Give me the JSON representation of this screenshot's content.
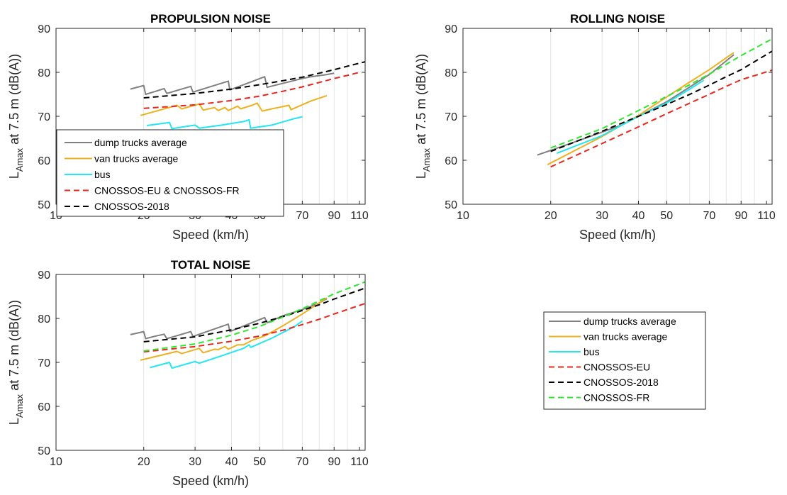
{
  "chart_data": [
    {
      "type": "line",
      "id": "propulsion",
      "title": "PROPULSION NOISE",
      "xlabel": "Speed (km/h)",
      "ylabel_main": "L",
      "ylabel_sub": "Amax",
      "ylabel_rest": " at 7.5 m (dB(A))",
      "xscale": "log",
      "xlim": [
        10,
        115
      ],
      "ylim": [
        50,
        90
      ],
      "xticks": [
        10,
        20,
        30,
        40,
        50,
        70,
        90,
        110
      ],
      "yticks": [
        50,
        60,
        70,
        80,
        90
      ],
      "grid": "x",
      "legend": {
        "placement": "bottom-left",
        "entries": [
          {
            "label": "dump trucks average",
            "color": "#808080",
            "dash": "solid"
          },
          {
            "label": "van trucks average",
            "color": "#EDB120",
            "dash": "solid"
          },
          {
            "label": "bus",
            "color": "#22E6F0",
            "dash": "solid"
          },
          {
            "label": "CNOSSOS-EU & CNOSSOS-FR",
            "color": "#E8251C",
            "dash": "dashed"
          },
          {
            "label": "CNOSSOS-2018",
            "color": "#000000",
            "dash": "dashed"
          }
        ]
      },
      "series": [
        {
          "color": "#808080",
          "dash": "solid",
          "points": [
            [
              18,
              76.2
            ],
            [
              20,
              77
            ],
            [
              20.3,
              75
            ],
            [
              22,
              75.7
            ],
            [
              23.5,
              76.3
            ],
            [
              24,
              75.2
            ],
            [
              29,
              76.8
            ],
            [
              29.5,
              75.5
            ],
            [
              39,
              78
            ],
            [
              39.5,
              76
            ],
            [
              52,
              79
            ],
            [
              53,
              76.6
            ],
            [
              70,
              78.6
            ],
            [
              75,
              79
            ],
            [
              85,
              79.5
            ],
            [
              90,
              79.8
            ]
          ]
        },
        {
          "color": "#EDB120",
          "dash": "solid",
          "points": [
            [
              19.5,
              70.2
            ],
            [
              26,
              72.5
            ],
            [
              27,
              71.7
            ],
            [
              31,
              72.8
            ],
            [
              32,
              71.4
            ],
            [
              35,
              72
            ],
            [
              36,
              71.3
            ],
            [
              38,
              72
            ],
            [
              39,
              71.3
            ],
            [
              42,
              72.3
            ],
            [
              43,
              71.7
            ],
            [
              47,
              72.5
            ],
            [
              49,
              73
            ],
            [
              51,
              71.2
            ],
            [
              56,
              71.8
            ],
            [
              63,
              72.5
            ],
            [
              64,
              71.5
            ],
            [
              75,
              73.5
            ],
            [
              85,
              74.7
            ]
          ]
        },
        {
          "color": "#22E6F0",
          "dash": "solid",
          "points": [
            [
              20.5,
              67.9
            ],
            [
              24.5,
              68.6
            ],
            [
              25,
              67.2
            ],
            [
              30,
              68
            ],
            [
              31,
              67.3
            ],
            [
              37,
              68
            ],
            [
              44,
              68.8
            ],
            [
              46,
              69.2
            ],
            [
              46.5,
              67.3
            ],
            [
              55,
              68
            ],
            [
              66,
              69.5
            ],
            [
              70,
              69.9
            ]
          ]
        },
        {
          "color": "#E8251C",
          "dash": "dashed",
          "points": [
            [
              20,
              71.8
            ],
            [
              30,
              72.6
            ],
            [
              40,
              73.6
            ],
            [
              50,
              74.6
            ],
            [
              60,
              75.7
            ],
            [
              70,
              76.7
            ],
            [
              80,
              77.7
            ],
            [
              90,
              78.6
            ],
            [
              100,
              79.3
            ],
            [
              110,
              80
            ]
          ]
        },
        {
          "color": "#000000",
          "dash": "dashed",
          "points": [
            [
              20,
              74.2
            ],
            [
              30,
              75.2
            ],
            [
              40,
              76.2
            ],
            [
              50,
              77.2
            ],
            [
              60,
              78.1
            ],
            [
              70,
              78.9
            ],
            [
              80,
              79.8
            ],
            [
              90,
              80.6
            ],
            [
              100,
              81.4
            ],
            [
              115,
              82.4
            ]
          ]
        }
      ]
    },
    {
      "type": "line",
      "id": "rolling",
      "title": "ROLLING NOISE",
      "xlabel": "Speed (km/h)",
      "ylabel_main": "L",
      "ylabel_sub": "Amax",
      "ylabel_rest": " at 7.5 m (dB(A))",
      "xscale": "log",
      "xlim": [
        10,
        115
      ],
      "ylim": [
        50,
        90
      ],
      "xticks": [
        10,
        20,
        30,
        40,
        50,
        70,
        90,
        110
      ],
      "yticks": [
        50,
        60,
        70,
        80,
        90
      ],
      "grid": "x",
      "series": [
        {
          "color": "#808080",
          "dash": "solid",
          "points": [
            [
              18,
              61.2
            ],
            [
              25,
              64.5
            ],
            [
              35,
              68
            ],
            [
              50,
              73.3
            ],
            [
              70,
              79.5
            ],
            [
              85,
              84
            ]
          ]
        },
        {
          "color": "#EDB120",
          "dash": "solid",
          "points": [
            [
              19.5,
              59
            ],
            [
              30,
              65.4
            ],
            [
              40,
              70.2
            ],
            [
              50,
              74.4
            ],
            [
              60,
              77.8
            ],
            [
              70,
              80.6
            ],
            [
              85,
              84.5
            ]
          ]
        },
        {
          "color": "#22E6F0",
          "dash": "solid",
          "points": [
            [
              21,
              61.6
            ],
            [
              30,
              65.6
            ],
            [
              40,
              70
            ],
            [
              50,
              73
            ],
            [
              60,
              76.2
            ],
            [
              67,
              78.2
            ]
          ]
        },
        {
          "color": "#E8251C",
          "dash": "dashed",
          "points": [
            [
              20,
              58.5
            ],
            [
              30,
              63.8
            ],
            [
              40,
              67.6
            ],
            [
              50,
              70.6
            ],
            [
              60,
              73
            ],
            [
              70,
              75
            ],
            [
              80,
              76.8
            ],
            [
              90,
              78.3
            ],
            [
              115,
              80.5
            ]
          ]
        },
        {
          "color": "#000000",
          "dash": "dashed",
          "points": [
            [
              20,
              62
            ],
            [
              30,
              66.6
            ],
            [
              40,
              70
            ],
            [
              50,
              72.7
            ],
            [
              60,
              75
            ],
            [
              70,
              77.1
            ],
            [
              80,
              79
            ],
            [
              90,
              80.6
            ],
            [
              115,
              84.8
            ]
          ]
        },
        {
          "color": "#2EE62E",
          "dash": "dashed",
          "points": [
            [
              20,
              62.8
            ],
            [
              30,
              67.2
            ],
            [
              40,
              71.3
            ],
            [
              50,
              74.5
            ],
            [
              60,
              77.2
            ],
            [
              70,
              79.6
            ],
            [
              80,
              81.8
            ],
            [
              90,
              83.8
            ],
            [
              115,
              87.6
            ]
          ]
        }
      ]
    },
    {
      "type": "line",
      "id": "total",
      "title": "TOTAL NOISE",
      "xlabel": "Speed (km/h)",
      "ylabel_main": "L",
      "ylabel_sub": "Amax",
      "ylabel_rest": " at 7.5 m (dB(A))",
      "xscale": "log",
      "xlim": [
        10,
        115
      ],
      "ylim": [
        50,
        90
      ],
      "xticks": [
        10,
        20,
        30,
        40,
        50,
        70,
        90,
        110
      ],
      "yticks": [
        50,
        60,
        70,
        80,
        90
      ],
      "grid": "x",
      "series": [
        {
          "color": "#808080",
          "dash": "solid",
          "points": [
            [
              18,
              76.3
            ],
            [
              20,
              77
            ],
            [
              20.3,
              75.4
            ],
            [
              22,
              76
            ],
            [
              23.5,
              76.4
            ],
            [
              24,
              75.4
            ],
            [
              29,
              77
            ],
            [
              29.5,
              75.9
            ],
            [
              39,
              78.7
            ],
            [
              39.5,
              77
            ],
            [
              52,
              80.2
            ],
            [
              53,
              79
            ],
            [
              60,
              80.6
            ],
            [
              70,
              82
            ],
            [
              80,
              83.5
            ],
            [
              85,
              84.5
            ]
          ]
        },
        {
          "color": "#EDB120",
          "dash": "solid",
          "points": [
            [
              19.5,
              70.5
            ],
            [
              26,
              72.5
            ],
            [
              27,
              72
            ],
            [
              31,
              73.2
            ],
            [
              32,
              72.2
            ],
            [
              35,
              73
            ],
            [
              36,
              72.9
            ],
            [
              38,
              73.6
            ],
            [
              39,
              73
            ],
            [
              42,
              74
            ],
            [
              44,
              74
            ],
            [
              47,
              75
            ],
            [
              52,
              76
            ],
            [
              60,
              78.3
            ],
            [
              70,
              81
            ],
            [
              85,
              84.7
            ]
          ]
        },
        {
          "color": "#22E6F0",
          "dash": "solid",
          "points": [
            [
              21,
              68.8
            ],
            [
              24.5,
              70
            ],
            [
              25,
              68.7
            ],
            [
              30,
              70.2
            ],
            [
              31,
              69.8
            ],
            [
              37,
              71.5
            ],
            [
              44,
              73.2
            ],
            [
              46,
              74
            ],
            [
              46.5,
              73.4
            ],
            [
              55,
              75.5
            ],
            [
              66,
              78.2
            ],
            [
              70,
              79.4
            ]
          ]
        },
        {
          "color": "#E8251C",
          "dash": "dashed",
          "points": [
            [
              20,
              72.4
            ],
            [
              30,
              73.6
            ],
            [
              40,
              74.8
            ],
            [
              50,
              76
            ],
            [
              60,
              77.3
            ],
            [
              70,
              78.6
            ],
            [
              80,
              79.8
            ],
            [
              90,
              81
            ],
            [
              115,
              83.4
            ]
          ]
        },
        {
          "color": "#000000",
          "dash": "dashed",
          "points": [
            [
              20,
              74.7
            ],
            [
              30,
              75.8
            ],
            [
              40,
              77.4
            ],
            [
              50,
              78.9
            ],
            [
              60,
              80.4
            ],
            [
              70,
              81.8
            ],
            [
              80,
              83.1
            ],
            [
              90,
              84.4
            ],
            [
              115,
              86.9
            ]
          ]
        },
        {
          "color": "#2EE62E",
          "dash": "dashed",
          "points": [
            [
              20,
              72.6
            ],
            [
              30,
              74.2
            ],
            [
              40,
              76.2
            ],
            [
              50,
              78.2
            ],
            [
              60,
              80.3
            ],
            [
              70,
              82.2
            ],
            [
              80,
              84
            ],
            [
              90,
              85.6
            ],
            [
              115,
              88.3
            ]
          ]
        }
      ]
    }
  ],
  "legend_panel": {
    "placement": "bottom-right",
    "entries": [
      {
        "label": "dump trucks average",
        "color": "#808080",
        "dash": "solid"
      },
      {
        "label": "van trucks average",
        "color": "#EDB120",
        "dash": "solid"
      },
      {
        "label": "bus",
        "color": "#22E6F0",
        "dash": "solid"
      },
      {
        "label": "CNOSSOS-EU",
        "color": "#E8251C",
        "dash": "dashed"
      },
      {
        "label": "CNOSSOS-2018",
        "color": "#000000",
        "dash": "dashed"
      },
      {
        "label": "CNOSSOS-FR",
        "color": "#2EE62E",
        "dash": "dashed"
      }
    ]
  }
}
